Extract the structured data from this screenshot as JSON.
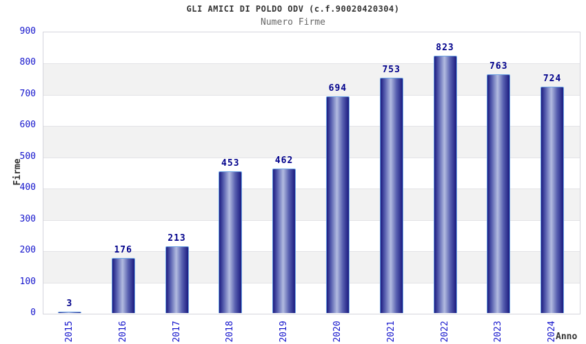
{
  "chart_data": {
    "type": "bar",
    "title": "GLI AMICI DI POLDO ODV (c.f.90020420304)",
    "subtitle": "Numero Firme",
    "xlabel": "Anno",
    "ylabel": "Firme",
    "categories": [
      "2015",
      "2016",
      "2017",
      "2018",
      "2019",
      "2020",
      "2021",
      "2022",
      "2023",
      "2024"
    ],
    "values": [
      3,
      176,
      213,
      453,
      462,
      694,
      753,
      823,
      763,
      724
    ],
    "ylim": [
      0,
      900
    ],
    "ytick_step": 100,
    "yticks": [
      0,
      100,
      200,
      300,
      400,
      500,
      600,
      700,
      800,
      900
    ],
    "grid": "horizontal-bands-alternating",
    "legend": "none",
    "colors": {
      "bar_dark": "#1b1b80",
      "bar_mid": "#5860b0",
      "bar_light": "#b2bbe0",
      "bar_outline": "#6aa2e4",
      "value_label": "#00008b",
      "tick_label": "#1313cc",
      "axis_label": "#333333",
      "title": "#333333",
      "subtitle": "#666666",
      "band": "#f2f2f2",
      "gridline": "#e3e3e6",
      "plot_border": "#d4d4dc",
      "background": "#ffffff"
    }
  }
}
